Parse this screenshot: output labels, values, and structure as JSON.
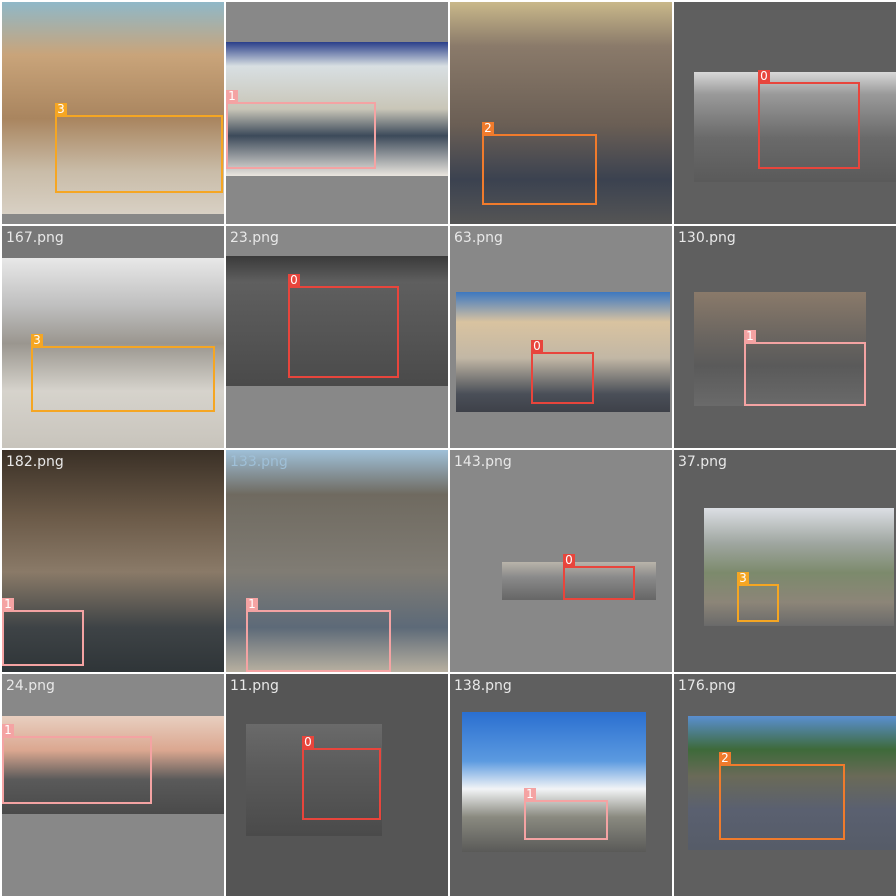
{
  "class_colors": {
    "0": "#e8453c",
    "1": "#f4a3a3",
    "2": "#f07b2c",
    "3": "#f5a623"
  },
  "tiles": [
    {
      "caption": "",
      "box_label": "3"
    },
    {
      "caption": "",
      "box_label": "1"
    },
    {
      "caption": "",
      "box_label": "2"
    },
    {
      "caption": "",
      "box_label": "0"
    },
    {
      "caption": "167.png",
      "box_label": "3"
    },
    {
      "caption": "23.png",
      "box_label": "0"
    },
    {
      "caption": "63.png",
      "box_label": "0"
    },
    {
      "caption": "130.png",
      "box_label": "1"
    },
    {
      "caption": "182.png",
      "box_label": "1"
    },
    {
      "caption": "133.png",
      "box_label": "1"
    },
    {
      "caption": "143.png",
      "box_label": "0"
    },
    {
      "caption": "37.png",
      "box_label": "3"
    },
    {
      "caption": "24.png",
      "box_label": "1"
    },
    {
      "caption": "11.png",
      "box_label": "0"
    },
    {
      "caption": "138.png",
      "box_label": "1"
    },
    {
      "caption": "176.png",
      "box_label": "2"
    }
  ]
}
